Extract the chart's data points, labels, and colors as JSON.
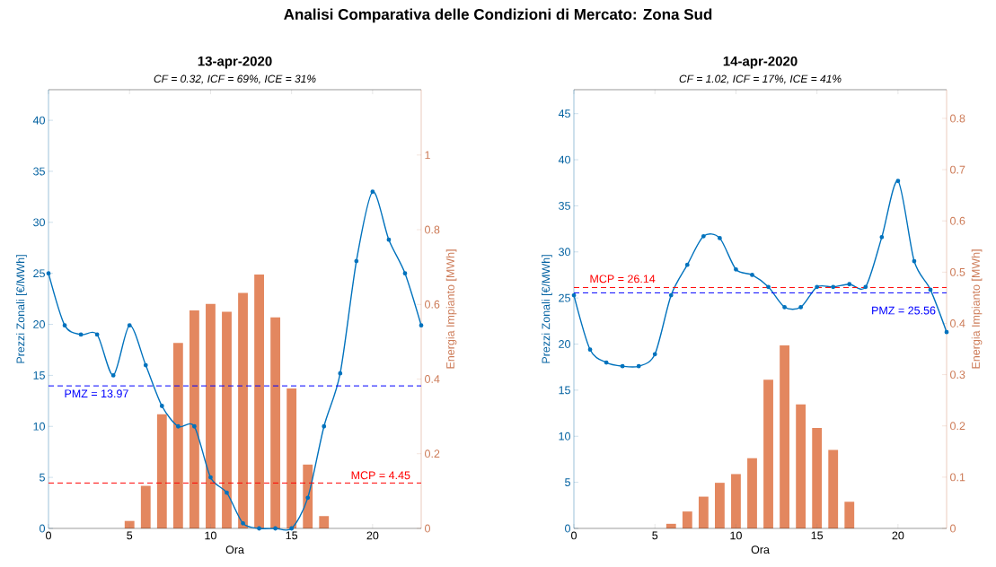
{
  "chart_data": [
    {
      "type": "bar",
      "title": "13-apr-2020",
      "subtitle": "CF = 0.32, ICF = 69%, ICE = 31%",
      "xlabel": "Ora",
      "ylabel": "Prezzi Zonali [€/MWh]",
      "y2label": "Energia Impianto [MWh]",
      "annotations": [
        "Analisi Comparativa delle Condizioni di Mercato: Zona Sud"
      ],
      "x": [
        0,
        1,
        2,
        3,
        4,
        5,
        6,
        7,
        8,
        9,
        10,
        11,
        12,
        13,
        14,
        15,
        16,
        17,
        18,
        19,
        20,
        21,
        22,
        23
      ],
      "xlim": [
        0,
        23
      ],
      "xticks": [
        0,
        5,
        10,
        15,
        20
      ],
      "ylim": [
        0,
        43
      ],
      "yticks": [
        0,
        5,
        10,
        15,
        20,
        25,
        30,
        35,
        40
      ],
      "y2lim": [
        0,
        1.175
      ],
      "y2ticks": [
        0,
        0.2,
        0.4,
        0.6,
        0.8,
        1
      ],
      "series": [
        {
          "axis": "y2",
          "color": "#e3875f",
          "values": [
            0,
            0,
            0,
            0,
            0,
            0.02,
            0.114,
            0.306,
            0.497,
            0.584,
            0.601,
            0.58,
            0.631,
            0.68,
            0.565,
            0.375,
            0.171,
            0.033,
            0,
            0,
            0,
            0,
            0,
            0
          ]
        },
        {
          "type": "line",
          "axis": "y",
          "color": "#0072bd",
          "marker": "circle",
          "values": [
            25,
            19.9,
            19,
            19,
            15,
            19.9,
            16,
            12,
            10,
            10,
            5,
            3.5,
            0.5,
            0,
            0,
            0,
            3,
            10,
            15.2,
            26.2,
            33,
            28.3,
            25,
            19.9
          ]
        }
      ],
      "ref_lines": [
        {
          "axis": "y",
          "value": 13.97,
          "label": "PMZ = 13.97",
          "color": "#0000ff",
          "line_style": "dashed"
        },
        {
          "axis": "y",
          "value": 4.45,
          "label": "MCP = 4.45",
          "color": "#ff0000",
          "line_style": "dashed"
        }
      ]
    },
    {
      "type": "bar",
      "title": "14-apr-2020",
      "subtitle": "CF = 1.02, ICF = 17%, ICE = 41%",
      "xlabel": "Ora",
      "ylabel": "Prezzi Zonali [€/MWh]",
      "y2label": "Energia Impianto [MWh]",
      "x": [
        0,
        1,
        2,
        3,
        4,
        5,
        6,
        7,
        8,
        9,
        10,
        11,
        12,
        13,
        14,
        15,
        16,
        17,
        18,
        19,
        20,
        21,
        22,
        23
      ],
      "xlim": [
        0,
        23
      ],
      "xticks": [
        0,
        5,
        10,
        15,
        20
      ],
      "ylim": [
        0,
        47.6
      ],
      "yticks": [
        0,
        5,
        10,
        15,
        20,
        25,
        30,
        35,
        40,
        45
      ],
      "y2lim": [
        0,
        0.856
      ],
      "y2ticks": [
        0,
        0.1,
        0.2,
        0.3,
        0.4,
        0.5,
        0.6,
        0.7,
        0.8
      ],
      "series": [
        {
          "axis": "y2",
          "color": "#e3875f",
          "values": [
            0,
            0,
            0,
            0,
            0,
            0,
            0.009,
            0.033,
            0.062,
            0.089,
            0.106,
            0.137,
            0.29,
            0.357,
            0.242,
            0.196,
            0.153,
            0.052,
            0,
            0,
            0,
            0,
            0,
            0
          ]
        },
        {
          "type": "line",
          "axis": "y",
          "color": "#0072bd",
          "marker": "circle",
          "values": [
            25.3,
            19.4,
            18,
            17.6,
            17.6,
            18.9,
            25.3,
            28.6,
            31.7,
            31.5,
            28.1,
            27.5,
            26.2,
            24,
            24,
            26.2,
            26.2,
            26.5,
            26.2,
            31.6,
            37.7,
            29,
            25.9,
            21.3
          ]
        }
      ],
      "ref_lines": [
        {
          "axis": "y",
          "value": 25.56,
          "label": "PMZ = 25.56",
          "color": "#0000ff",
          "line_style": "dashed"
        },
        {
          "axis": "y",
          "value": 26.14,
          "label": "MCP = 26.14",
          "color": "#ff0000",
          "line_style": "dashed"
        }
      ]
    }
  ]
}
